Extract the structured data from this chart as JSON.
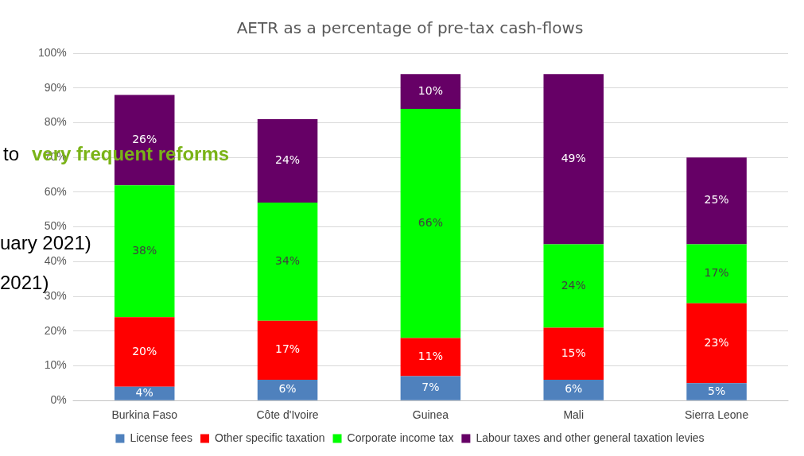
{
  "chart_data": {
    "type": "bar",
    "stacked": true,
    "title": "AETR as a percentage of pre-tax cash-flows",
    "categories": [
      "Burkina Faso",
      "Côte d'Ivoire",
      "Guinea",
      "Mali",
      "Sierra Leone"
    ],
    "series": [
      {
        "name": "License fees",
        "color": "#4f81bd",
        "values": [
          4,
          6,
          7,
          6,
          5
        ],
        "value_labels": [
          "4%",
          "6%",
          "7%",
          "6%",
          "5%"
        ]
      },
      {
        "name": "Other specific taxation",
        "color": "#ff0000",
        "values": [
          20,
          17,
          11,
          15,
          23
        ],
        "value_labels": [
          "20%",
          "17%",
          "11%",
          "15%",
          "23%"
        ]
      },
      {
        "name": "Corporate income tax",
        "color": "#00ff00",
        "values": [
          38,
          34,
          66,
          24,
          17
        ],
        "value_labels": [
          "38%",
          "34%",
          "66%",
          "24%",
          "17%"
        ]
      },
      {
        "name": "Labour taxes and other general taxation levies",
        "color": "#660066",
        "values": [
          26,
          24,
          10,
          49,
          25
        ],
        "value_labels": [
          "26%",
          "24%",
          "10%",
          "49%",
          "25%"
        ]
      }
    ],
    "ylim": [
      0,
      100
    ],
    "yticks": [
      {
        "value": 0,
        "label": "0%"
      },
      {
        "value": 10,
        "label": "10%"
      },
      {
        "value": 20,
        "label": "20%"
      },
      {
        "value": 30,
        "label": "30%"
      },
      {
        "value": 40,
        "label": "40%"
      },
      {
        "value": 50,
        "label": "50%"
      },
      {
        "value": 60,
        "label": "60%"
      },
      {
        "value": 70,
        "label": "70%"
      },
      {
        "value": 80,
        "label": "80%"
      },
      {
        "value": 90,
        "label": "90%"
      },
      {
        "value": 100,
        "label": "100%"
      }
    ],
    "grid": "y",
    "legend": "bottom",
    "annotations": [
      "to",
      "very frequent reforms",
      "uary 2021)",
      "2021)"
    ]
  }
}
